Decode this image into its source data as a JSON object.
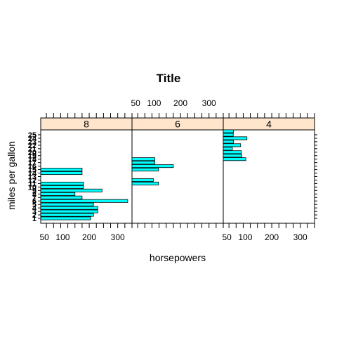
{
  "chart_data": {
    "type": "bar",
    "orientation": "horizontal",
    "title": "Title",
    "xlabel": "horsepowers",
    "ylabel": "miles per gallon",
    "xlim": [
      30,
      350
    ],
    "x_ticks": [
      50,
      100,
      200,
      300
    ],
    "x_tick_labels": [
      "50",
      "100",
      "200",
      "300"
    ],
    "y_tick_labels": [
      "1",
      "2",
      "3",
      "4",
      "5",
      "6",
      "7",
      "8",
      "9",
      "10",
      "11",
      "12",
      "13",
      "14",
      "15",
      "16",
      "17",
      "18",
      "19",
      "20",
      "21",
      "22",
      "23",
      "24",
      "25"
    ],
    "strip_background": "#ffe5cc",
    "bar_fill": "#00ffff",
    "panels": [
      {
        "strip": "8",
        "bars": [
          {
            "y": 1,
            "x": 205
          },
          {
            "y": 2,
            "x": 215
          },
          {
            "y": 3,
            "x": 230
          },
          {
            "y": 4,
            "x": 230
          },
          {
            "y": 5,
            "x": 215
          },
          {
            "y": 6,
            "x": 335
          },
          {
            "y": 7,
            "x": 175
          },
          {
            "y": 8,
            "x": 150
          },
          {
            "y": 9,
            "x": 245
          },
          {
            "y": 10,
            "x": 180
          },
          {
            "y": 11,
            "x": 180
          },
          {
            "y": 14,
            "x": 175
          },
          {
            "y": 15,
            "x": 175
          }
        ]
      },
      {
        "strip": "6",
        "bars": [
          {
            "y": 11,
            "x": 123
          },
          {
            "y": 12,
            "x": 105
          },
          {
            "y": 15,
            "x": 123
          },
          {
            "y": 16,
            "x": 175
          },
          {
            "y": 17,
            "x": 110
          },
          {
            "y": 18,
            "x": 110
          }
        ]
      },
      {
        "strip": "4",
        "bars": [
          {
            "y": 18,
            "x": 109
          },
          {
            "y": 19,
            "x": 95
          },
          {
            "y": 20,
            "x": 93
          },
          {
            "y": 21,
            "x": 62
          },
          {
            "y": 22,
            "x": 91
          },
          {
            "y": 23,
            "x": 66
          },
          {
            "y": 24,
            "x": 113
          },
          {
            "y": 25,
            "x": 65
          },
          {
            "y": 26,
            "x": 66
          }
        ]
      }
    ]
  }
}
